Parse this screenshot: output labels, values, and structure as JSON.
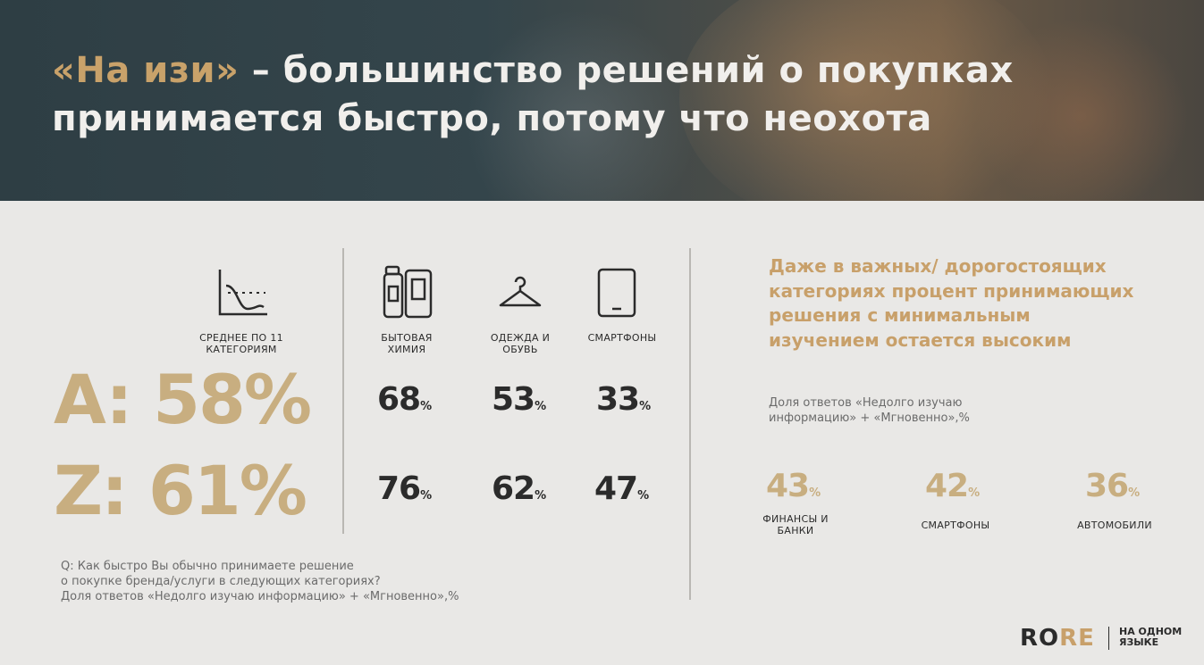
{
  "header": {
    "title_accent": "«На изи»",
    "title_rest": " – большинство решений о покупках принимается быстро, потому что неохота"
  },
  "average": {
    "label": "СРЕДНЕЕ ПО 11 КАТЕГОРИЯМ",
    "a_value": "A: 58%",
    "z_value": "Z: 61%"
  },
  "categories": [
    {
      "label": "БЫТОВАЯ ХИМИЯ",
      "a": "68",
      "z": "76"
    },
    {
      "label": "ОДЕЖДА И ОБУВЬ",
      "a": "53",
      "z": "62"
    },
    {
      "label": "СМАРТФОНЫ",
      "a": "33",
      "z": "47"
    }
  ],
  "percent_sign": "%",
  "question": {
    "line1": "Q: Как быстро Вы обычно принимаете решение",
    "line2": "о покупке бренда/услуги в следующих категориях?",
    "line3": "Доля ответов «Недолго изучаю информацию» + «Мгновенно»,%"
  },
  "right": {
    "heading": "Даже в важных/ дорогостоящих категориях процент принимающих решения с минимальным изучением остается высоким",
    "note_line1": "Доля ответов «Недолго изучаю",
    "note_line2": "информацию» + «Мгновенно»,%",
    "stats": [
      {
        "value": "43",
        "label": "ФИНАНСЫ И БАНКИ"
      },
      {
        "value": "42",
        "label": "СМАРТФОНЫ"
      },
      {
        "value": "36",
        "label": "АВТОМОБИЛИ"
      }
    ]
  },
  "logo": {
    "part1": "RO",
    "part2": "RE",
    "sub_line1": "НА ОДНОМ",
    "sub_line2": "ЯЗЫКЕ"
  },
  "colors": {
    "accent": "#c8ae80",
    "dark": "#2b2b2b",
    "header_bg": "#2e3e44"
  }
}
